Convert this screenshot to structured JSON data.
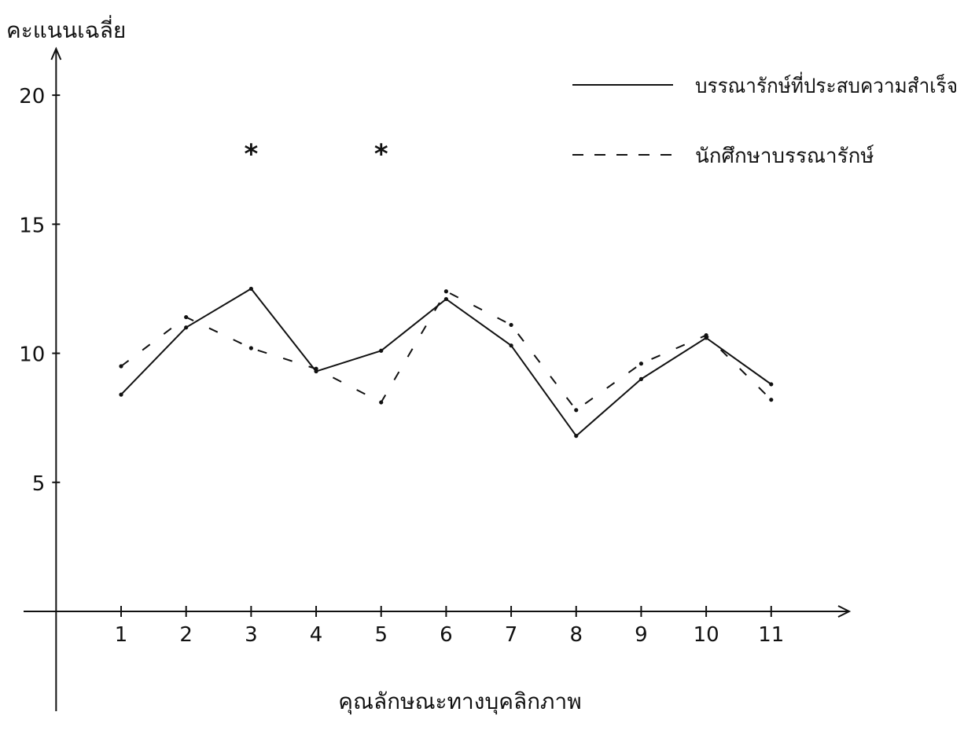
{
  "chart_data": {
    "type": "line",
    "title": "",
    "ylabel": "คะแนนเฉลี่ย",
    "xlabel": "คุณลักษณะทางบุคลิกภาพ",
    "x": [
      1,
      2,
      3,
      4,
      5,
      6,
      7,
      8,
      9,
      10,
      11
    ],
    "x_tick_labels": [
      "1",
      "2",
      "3",
      "4",
      "5",
      "6",
      "7",
      "8",
      "9",
      "10",
      "11"
    ],
    "y_ticks": [
      5,
      10,
      15,
      20
    ],
    "y_tick_labels": [
      "5",
      "10",
      "15",
      "20"
    ],
    "xlim": [
      -0.5,
      12.2
    ],
    "ylim": [
      0,
      21.8
    ],
    "grid": false,
    "legend_position": "top-right",
    "series": [
      {
        "name": "บรรณารักษ์ที่ประสบความสำเร็จ",
        "style": "solid",
        "values": [
          8.4,
          11.0,
          12.5,
          9.3,
          10.1,
          12.1,
          10.3,
          6.8,
          9.0,
          10.6,
          8.8
        ]
      },
      {
        "name": "นักศึกษาบรรณารักษ์",
        "style": "dashed",
        "values": [
          9.5,
          11.4,
          10.2,
          9.4,
          8.1,
          12.4,
          11.1,
          7.8,
          9.6,
          10.7,
          8.2
        ]
      }
    ],
    "annotations": [
      {
        "x": 3,
        "y": 17.8,
        "text": "*"
      },
      {
        "x": 5,
        "y": 17.8,
        "text": "*"
      }
    ],
    "colors": {
      "line": "#111111",
      "background": "#ffffff"
    }
  }
}
